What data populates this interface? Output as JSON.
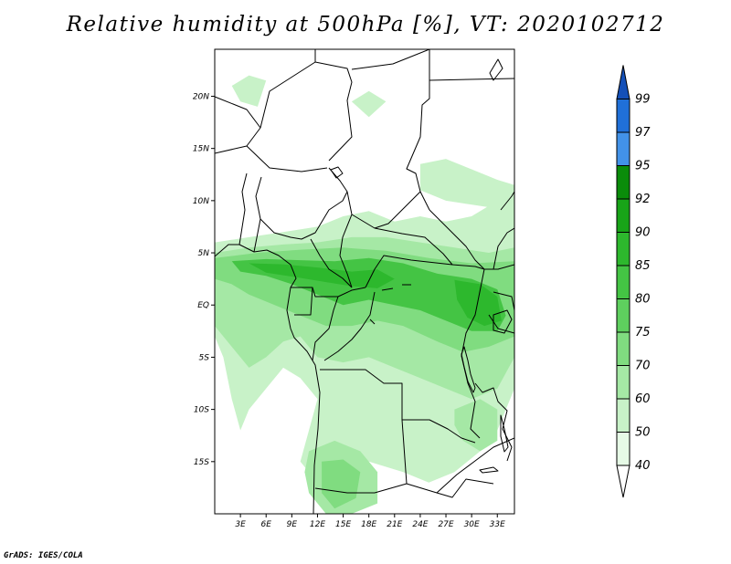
{
  "title": "Relative humidity at 500hPa [%], VT: 2020102712",
  "credit": "GrADS: IGES/COLA",
  "map": {
    "lon_range": [
      0,
      35
    ],
    "lat_range": [
      -20,
      24.5
    ],
    "lon_ticks": [
      {
        "v": 3,
        "label": "3E"
      },
      {
        "v": 6,
        "label": "6E"
      },
      {
        "v": 9,
        "label": "9E"
      },
      {
        "v": 12,
        "label": "12E"
      },
      {
        "v": 15,
        "label": "15E"
      },
      {
        "v": 18,
        "label": "18E"
      },
      {
        "v": 21,
        "label": "21E"
      },
      {
        "v": 24,
        "label": "24E"
      },
      {
        "v": 27,
        "label": "27E"
      },
      {
        "v": 30,
        "label": "30E"
      },
      {
        "v": 33,
        "label": "33E"
      }
    ],
    "lat_ticks": [
      {
        "v": 20,
        "label": "20N"
      },
      {
        "v": 15,
        "label": "15N"
      },
      {
        "v": 10,
        "label": "10N"
      },
      {
        "v": 5,
        "label": "5N"
      },
      {
        "v": 0,
        "label": "EQ"
      },
      {
        "v": -5,
        "label": "5S"
      },
      {
        "v": -10,
        "label": "10S"
      },
      {
        "v": -15,
        "label": "15S"
      }
    ],
    "humid_regions": [
      {
        "level": 50,
        "lonlat": [
          [
            0,
            6
          ],
          [
            4,
            6.5
          ],
          [
            8,
            7
          ],
          [
            12,
            7.5
          ],
          [
            15,
            8.5
          ],
          [
            18,
            9
          ],
          [
            21,
            8
          ],
          [
            24,
            8.5
          ],
          [
            27,
            8
          ],
          [
            30,
            8.5
          ],
          [
            32,
            9.5
          ],
          [
            35,
            10
          ],
          [
            35,
            -8
          ],
          [
            33,
            -12
          ],
          [
            31,
            -14
          ],
          [
            28,
            -16
          ],
          [
            25,
            -17
          ],
          [
            22,
            -16
          ],
          [
            18,
            -15
          ],
          [
            15,
            -16
          ],
          [
            12,
            -17
          ],
          [
            10,
            -15
          ],
          [
            11,
            -12
          ],
          [
            12,
            -9
          ],
          [
            10,
            -7
          ],
          [
            8,
            -6
          ],
          [
            6,
            -8
          ],
          [
            4,
            -10
          ],
          [
            3,
            -12
          ],
          [
            2,
            -9
          ],
          [
            1,
            -5
          ],
          [
            0,
            -3
          ]
        ]
      },
      {
        "level": 60,
        "lonlat": [
          [
            0,
            5
          ],
          [
            4,
            5.5
          ],
          [
            8,
            5.8
          ],
          [
            12,
            6
          ],
          [
            16,
            6.5
          ],
          [
            20,
            6.5
          ],
          [
            24,
            6
          ],
          [
            28,
            5.5
          ],
          [
            32,
            5
          ],
          [
            35,
            5.5
          ],
          [
            35,
            -5
          ],
          [
            33,
            -8
          ],
          [
            30,
            -9
          ],
          [
            27,
            -8
          ],
          [
            24,
            -7
          ],
          [
            21,
            -6
          ],
          [
            18,
            -5
          ],
          [
            15,
            -5.5
          ],
          [
            12,
            -5
          ],
          [
            10,
            -3
          ],
          [
            8,
            -3.5
          ],
          [
            6,
            -5
          ],
          [
            4,
            -6
          ],
          [
            2,
            -4
          ],
          [
            0,
            -2
          ]
        ]
      },
      {
        "level": 70,
        "lonlat": [
          [
            0,
            4.5
          ],
          [
            5,
            5
          ],
          [
            10,
            5.3
          ],
          [
            15,
            5.5
          ],
          [
            20,
            5.2
          ],
          [
            25,
            4.5
          ],
          [
            30,
            4
          ],
          [
            35,
            4.2
          ],
          [
            35,
            -3
          ],
          [
            32,
            -4
          ],
          [
            29,
            -4.5
          ],
          [
            26,
            -3.5
          ],
          [
            22,
            -2
          ],
          [
            19,
            -1.5
          ],
          [
            16,
            -2
          ],
          [
            13,
            -2
          ],
          [
            10,
            -1
          ],
          [
            7,
            0
          ],
          [
            4,
            1
          ],
          [
            2,
            2
          ],
          [
            0,
            2.5
          ]
        ]
      },
      {
        "level": 80,
        "lonlat": [
          [
            2,
            4.2
          ],
          [
            6,
            4.4
          ],
          [
            10,
            4.3
          ],
          [
            14,
            4.2
          ],
          [
            18,
            4.5
          ],
          [
            22,
            4
          ],
          [
            26,
            3
          ],
          [
            30,
            2.5
          ],
          [
            33,
            1.5
          ],
          [
            34,
            -1
          ],
          [
            33,
            -2.5
          ],
          [
            30,
            -2.5
          ],
          [
            27,
            -1.5
          ],
          [
            24,
            -0.5
          ],
          [
            21,
            0
          ],
          [
            18,
            0.5
          ],
          [
            15,
            0
          ],
          [
            12,
            1
          ],
          [
            9,
            2
          ],
          [
            6,
            2.8
          ],
          [
            3,
            3.2
          ]
        ]
      },
      {
        "level": 85,
        "lonlat": [
          [
            4,
            4
          ],
          [
            8,
            3.9
          ],
          [
            12,
            3.6
          ],
          [
            16,
            3.2
          ],
          [
            19,
            3.4
          ],
          [
            21,
            2.5
          ],
          [
            19,
            1.6
          ],
          [
            16,
            1.8
          ],
          [
            13,
            2.2
          ],
          [
            10,
            2.6
          ],
          [
            6,
            3.1
          ]
        ]
      },
      {
        "level": 85,
        "lonlat": [
          [
            28,
            2.4
          ],
          [
            31,
            2.0
          ],
          [
            33,
            0.8
          ],
          [
            33.5,
            -1.5
          ],
          [
            31.5,
            -2
          ],
          [
            29.5,
            -1.2
          ],
          [
            28.3,
            0.5
          ]
        ]
      },
      {
        "level": 60,
        "lonlat": [
          [
            11,
            -14
          ],
          [
            14,
            -13
          ],
          [
            17,
            -14
          ],
          [
            19,
            -16
          ],
          [
            19,
            -19
          ],
          [
            16,
            -20
          ],
          [
            13,
            -20
          ],
          [
            11,
            -18
          ],
          [
            10.5,
            -16
          ]
        ]
      },
      {
        "level": 70,
        "lonlat": [
          [
            12.5,
            -15
          ],
          [
            15,
            -14.8
          ],
          [
            17,
            -16
          ],
          [
            16.5,
            -18.5
          ],
          [
            14,
            -19.5
          ],
          [
            12.5,
            -18
          ]
        ]
      },
      {
        "level": 60,
        "lonlat": [
          [
            28,
            -10
          ],
          [
            31,
            -9
          ],
          [
            33,
            -10
          ],
          [
            33,
            -13
          ],
          [
            31,
            -14
          ],
          [
            29,
            -13
          ],
          [
            28,
            -11.5
          ]
        ]
      },
      {
        "level": 50,
        "lonlat": [
          [
            24,
            13.5
          ],
          [
            27,
            14
          ],
          [
            30,
            13
          ],
          [
            33,
            12
          ],
          [
            35,
            11.5
          ],
          [
            35,
            9
          ],
          [
            31,
            9.5
          ],
          [
            27,
            10
          ],
          [
            24,
            11
          ]
        ]
      },
      {
        "level": 50,
        "lonlat": [
          [
            2,
            21
          ],
          [
            4,
            22
          ],
          [
            6,
            21.5
          ],
          [
            5,
            19
          ],
          [
            3,
            19.5
          ]
        ]
      },
      {
        "level": 50,
        "lonlat": [
          [
            16,
            19.5
          ],
          [
            18,
            20.5
          ],
          [
            20,
            19.5
          ],
          [
            18,
            18
          ]
        ]
      }
    ]
  },
  "colorbar": {
    "items": [
      {
        "color": "#ffffff"
      },
      {
        "label": "40",
        "color": "#e6fae6"
      },
      {
        "label": "50",
        "color": "#c8f2c8"
      },
      {
        "label": "60",
        "color": "#a5e8a5"
      },
      {
        "label": "70",
        "color": "#80dc80"
      },
      {
        "label": "75",
        "color": "#5ecf5e"
      },
      {
        "label": "80",
        "color": "#44c444"
      },
      {
        "label": "85",
        "color": "#2db82d"
      },
      {
        "label": "90",
        "color": "#18a418"
      },
      {
        "label": "92",
        "color": "#0a8c0a"
      },
      {
        "label": "95",
        "color": "#4292e8"
      },
      {
        "label": "97",
        "color": "#2070d8"
      },
      {
        "label": "99",
        "color": "#1450b8"
      }
    ]
  }
}
